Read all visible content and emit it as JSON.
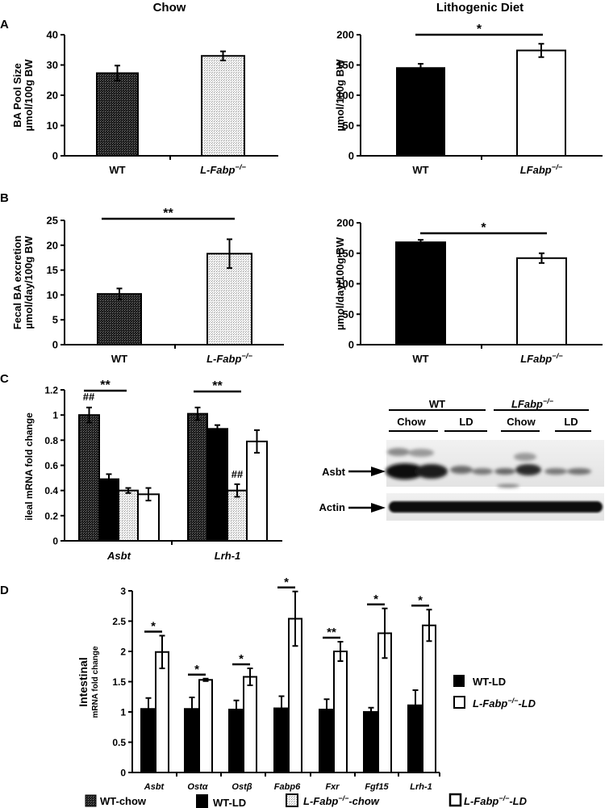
{
  "titles": {
    "chow": "Chow",
    "lithogenic": "Lithogenic Diet"
  },
  "panel_labels": {
    "a": "A",
    "b": "B",
    "c": "C",
    "d": "D"
  },
  "colors": {
    "wt_chow": "#2a2a2a",
    "wt_ld": "#000000",
    "lfabp_chow": "#e6e6e6",
    "lfabp_ld": "#ffffff"
  },
  "western_blot": {
    "group_wt": "WT",
    "group_lfabp": "LFabp",
    "group_lfabp_sup": "−/−",
    "lane_labels": [
      "Chow",
      "LD",
      "Chow",
      "LD"
    ],
    "band_asbt": "Asbt",
    "band_actin": "Actin"
  },
  "legend_d": {
    "wt_ld": "WT-LD",
    "lfabp_ld_prefix": "L-Fabp",
    "sup": "−/−",
    "lfabp_ld_suffix": "-LD"
  },
  "legend_bottom": {
    "wt_chow": "WT-chow",
    "wt_ld": "WT-LD",
    "lfabp_chow_prefix": "L-Fabp",
    "lfabp_chow_suffix": "-chow",
    "lfabp_ld_prefix": "L-Fabp",
    "lfabp_ld_suffix": "-LD",
    "sup": "−/−"
  },
  "chart_data": [
    {
      "id": "A-chow",
      "type": "bar",
      "title": "Chow",
      "ylabel": "BA Pool Size µmol/100g BW",
      "ylabel_lines": [
        "BA Pool Size",
        "µmol/100g BW"
      ],
      "categories": [
        "WT",
        "L-Fabp−/−"
      ],
      "values": [
        27.3,
        33.0
      ],
      "errors": [
        2.5,
        1.5
      ],
      "ylim": [
        0,
        40
      ],
      "yticks": [
        0,
        10,
        20,
        30,
        40
      ],
      "significance": []
    },
    {
      "id": "A-ld",
      "type": "bar",
      "title": "Lithogenic Diet",
      "ylabel": "µmol/100g BW",
      "ylabel_lines": [
        "µmol/100g BW"
      ],
      "categories": [
        "WT",
        "LFabp−/−"
      ],
      "values": [
        145,
        174
      ],
      "errors": [
        7,
        11
      ],
      "ylim": [
        0,
        200
      ],
      "yticks": [
        0,
        50,
        100,
        150,
        200
      ],
      "significance": [
        {
          "between": [
            "WT",
            "LFabp−/−"
          ],
          "label": "*"
        }
      ]
    },
    {
      "id": "B-chow",
      "type": "bar",
      "ylabel": "Fecal BA excretion µmol/day/100g BW",
      "ylabel_lines": [
        "Fecal BA excretion",
        "µmol/day/100g BW"
      ],
      "categories": [
        "WT",
        "L-Fabp−/−"
      ],
      "values": [
        10.2,
        18.3
      ],
      "errors": [
        1.1,
        2.9
      ],
      "ylim": [
        0,
        25
      ],
      "yticks": [
        0,
        5,
        10,
        15,
        20,
        25
      ],
      "significance": [
        {
          "between": [
            "WT",
            "L-Fabp−/−"
          ],
          "label": "**"
        }
      ]
    },
    {
      "id": "B-ld",
      "type": "bar",
      "ylabel": "µmol/day/100g BW",
      "ylabel_lines": [
        "µmol/day/100g BW"
      ],
      "categories": [
        "WT",
        "LFabp−/−"
      ],
      "values": [
        168,
        142
      ],
      "errors": [
        4,
        8
      ],
      "ylim": [
        0,
        200
      ],
      "yticks": [
        0,
        50,
        100,
        150,
        200
      ],
      "significance": [
        {
          "between": [
            "WT",
            "LFabp−/−"
          ],
          "label": "*"
        }
      ]
    },
    {
      "id": "C",
      "type": "bar",
      "ylabel": "ileal mRNA fold change",
      "categories": [
        "Asbt",
        "Lrh-1"
      ],
      "series": [
        {
          "name": "WT-chow",
          "values": [
            1.0,
            1.01
          ],
          "errors": [
            0.06,
            0.05
          ]
        },
        {
          "name": "WT-LD",
          "values": [
            0.49,
            0.89
          ],
          "errors": [
            0.04,
            0.03
          ]
        },
        {
          "name": "L-Fabp−/−-chow",
          "values": [
            0.4,
            0.4
          ],
          "errors": [
            0.02,
            0.05
          ]
        },
        {
          "name": "L-Fabp−/−-LD",
          "values": [
            0.37,
            0.79
          ],
          "errors": [
            0.05,
            0.09
          ]
        }
      ],
      "ylim": [
        0,
        1.2
      ],
      "yticks": [
        0,
        0.2,
        0.4,
        0.6,
        0.8,
        1,
        1.2
      ],
      "annotations": [
        "## above Asbt WT-chow",
        "## above Lrh-1 L-Fabp−/−-chow",
        "** WT-chow vs WT-LD (Asbt)",
        "** WT-chow vs L-Fabp−/−-chow (Lrh-1)"
      ]
    },
    {
      "id": "D",
      "type": "bar",
      "ylabel": "Intestinal mRNA fold change",
      "ylabel_lines": [
        "Intestinal",
        "mRNA fold change"
      ],
      "categories": [
        "Asbt",
        "Ostα",
        "Ostβ",
        "Fabp6",
        "Fxr",
        "Fgf15",
        "Lrh-1"
      ],
      "series": [
        {
          "name": "WT-LD",
          "values": [
            1.05,
            1.05,
            1.04,
            1.06,
            1.04,
            1.0,
            1.11
          ],
          "errors": [
            0.18,
            0.19,
            0.15,
            0.2,
            0.17,
            0.07,
            0.25
          ]
        },
        {
          "name": "L-Fabp−/−-LD",
          "values": [
            1.99,
            1.53,
            1.58,
            2.54,
            2.0,
            2.3,
            2.43
          ],
          "errors": [
            0.27,
            0.02,
            0.14,
            0.45,
            0.16,
            0.41,
            0.26
          ]
        }
      ],
      "significance": [
        "*",
        "*",
        "*",
        "*",
        "**",
        "*",
        "*"
      ],
      "ylim": [
        0,
        3
      ],
      "yticks": [
        0,
        0.5,
        1,
        1.5,
        2,
        2.5,
        3
      ],
      "legend_position": "right"
    }
  ]
}
